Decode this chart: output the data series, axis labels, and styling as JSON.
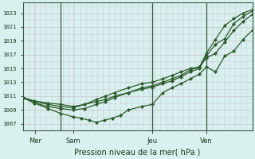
{
  "title": "Pression niveau de la mer( hPa )",
  "background_color": "#d8f0ee",
  "grid_color": "#c8b8c8",
  "line_color": "#2a5c2a",
  "yticks": [
    1007,
    1009,
    1011,
    1013,
    1015,
    1017,
    1019,
    1021,
    1023
  ],
  "ylim": [
    1006.0,
    1024.5
  ],
  "xlim": [
    0.0,
    1.0
  ],
  "day_labels": [
    "Mer",
    "Sam",
    "Jeu",
    "Ven"
  ],
  "day_positions": [
    0.055,
    0.22,
    0.565,
    0.8
  ],
  "vline_positions": [
    0.165,
    0.565,
    0.8
  ],
  "series": [
    {
      "x": [
        0.0,
        0.05,
        0.11,
        0.165,
        0.22,
        0.27,
        0.32,
        0.36,
        0.4,
        0.46,
        0.52,
        0.565,
        0.61,
        0.65,
        0.69,
        0.73,
        0.77,
        0.8,
        0.84,
        0.88,
        0.92,
        0.96,
        1.0
      ],
      "y": [
        1010.8,
        1010.3,
        1010.0,
        1009.8,
        1009.5,
        1009.8,
        1010.2,
        1010.5,
        1011.0,
        1011.5,
        1012.0,
        1012.3,
        1012.8,
        1013.2,
        1013.8,
        1014.5,
        1015.0,
        1016.8,
        1018.5,
        1019.3,
        1021.5,
        1022.5,
        1023.3
      ]
    },
    {
      "x": [
        0.0,
        0.05,
        0.11,
        0.165,
        0.22,
        0.27,
        0.32,
        0.36,
        0.4,
        0.46,
        0.52,
        0.565,
        0.61,
        0.65,
        0.69,
        0.73,
        0.77,
        0.8,
        0.84,
        0.88,
        0.92,
        0.96,
        1.0
      ],
      "y": [
        1010.8,
        1010.0,
        1009.5,
        1009.2,
        1009.0,
        1009.2,
        1009.8,
        1010.2,
        1010.8,
        1011.5,
        1012.2,
        1012.5,
        1013.0,
        1013.5,
        1014.0,
        1014.8,
        1015.2,
        1017.2,
        1019.2,
        1021.2,
        1022.2,
        1023.0,
        1023.5
      ]
    },
    {
      "x": [
        0.0,
        0.05,
        0.11,
        0.165,
        0.22,
        0.27,
        0.32,
        0.36,
        0.4,
        0.46,
        0.52,
        0.565,
        0.61,
        0.65,
        0.69,
        0.73,
        0.77,
        0.8,
        0.84,
        0.88,
        0.92,
        0.96,
        1.0
      ],
      "y": [
        1010.8,
        1010.2,
        1009.8,
        1009.5,
        1009.3,
        1009.8,
        1010.5,
        1011.0,
        1011.5,
        1012.2,
        1012.8,
        1013.0,
        1013.5,
        1014.0,
        1014.5,
        1015.0,
        1015.2,
        1016.5,
        1017.2,
        1018.8,
        1020.5,
        1021.8,
        1022.8
      ]
    },
    {
      "x": [
        0.0,
        0.05,
        0.11,
        0.165,
        0.22,
        0.255,
        0.29,
        0.32,
        0.355,
        0.39,
        0.425,
        0.46,
        0.52,
        0.565,
        0.61,
        0.65,
        0.69,
        0.73,
        0.77,
        0.8,
        0.84,
        0.88,
        0.92,
        0.96,
        1.0
      ],
      "y": [
        1010.8,
        1010.0,
        1009.2,
        1008.5,
        1008.0,
        1007.8,
        1007.5,
        1007.2,
        1007.5,
        1007.8,
        1008.2,
        1009.0,
        1009.5,
        1009.8,
        1011.5,
        1012.2,
        1012.8,
        1013.5,
        1014.2,
        1015.2,
        1014.5,
        1016.8,
        1017.5,
        1019.2,
        1020.5
      ]
    }
  ]
}
